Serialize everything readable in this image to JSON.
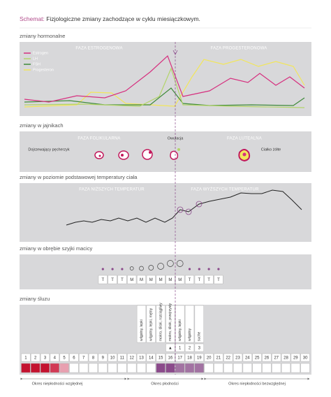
{
  "title": {
    "prefix": "Schemat:",
    "text": "Fizjologiczne zmiany zachodzące w cyklu miesiączkowym."
  },
  "hormones": {
    "label": "zmiany hormonalne",
    "phases": [
      "FAZA ESTROGENOWA",
      "FAZA PROGESTERONOWA"
    ],
    "legend": [
      {
        "name": "Estrogen",
        "color": "#d6307f"
      },
      {
        "name": "LH",
        "color": "#b3d46a"
      },
      {
        "name": "FSH",
        "color": "#3f8a3a"
      },
      {
        "name": "Progesteron",
        "color": "#f2e65a"
      }
    ]
  },
  "ovaries": {
    "label": "zmiany w jajnikach",
    "phases": [
      "FAZA FOLIKULARNA",
      "Owulacja",
      "FAZA LUTEALNA"
    ],
    "notes": [
      "Dojrzewający pęcherzyk",
      "Ciałko żółte"
    ]
  },
  "temperature": {
    "label": "zmiany w poziomie podstawowej temperatury ciała",
    "phases": [
      "FAZA NIŻSZYCH TEMPERATUR",
      "FAZA WYŻSZYCH TEMPERATUR"
    ]
  },
  "cervix": {
    "label": "zmiany w obrębie szyjki macicy",
    "letters": [
      "T",
      "T",
      "T",
      "M",
      "M",
      "M",
      "M",
      "M",
      "M",
      "T",
      "T",
      "T",
      "T"
    ]
  },
  "mucus": {
    "label": "zmiany śluzu",
    "descriptions": [
      "wilgotny, lepki",
      "wilgotny, lepki, mętny",
      "mokro, śliski, rozciągliwy",
      "mokro, śliski, przejrzysty",
      "wilgotny, lepki",
      "wilgotny",
      "suche"
    ],
    "peak_marks": [
      "▲",
      "1",
      "2",
      "3"
    ],
    "days": [
      1,
      2,
      3,
      4,
      5,
      6,
      7,
      8,
      9,
      10,
      11,
      12,
      13,
      14,
      15,
      16,
      17,
      18,
      19,
      20,
      21,
      22,
      23,
      24,
      25,
      26,
      27,
      28,
      29,
      30
    ],
    "day_colors": [
      "#c4122f",
      "#c4122f",
      "#c4122f",
      "#d23a55",
      "#e8a0b0",
      "#ffffff",
      "#ffffff",
      "#ffffff",
      "#ffffff",
      "#ffffff",
      "#ffffff",
      "#ffffff",
      "#ffffff",
      "#ffffff",
      "#8b4a8b",
      "#8b4a8b",
      "#a272a2",
      "#a272a2",
      "#a272a2",
      "#ffffff",
      "#ffffff",
      "#ffffff",
      "#ffffff",
      "#ffffff",
      "#ffffff",
      "#ffffff",
      "#ffffff",
      "#ffffff",
      "#ffffff",
      "#ffffff"
    ]
  },
  "periods": [
    "Okres niepłodności względnej",
    "Okres płodności",
    "Okres niepłodności bezwzględnej"
  ]
}
